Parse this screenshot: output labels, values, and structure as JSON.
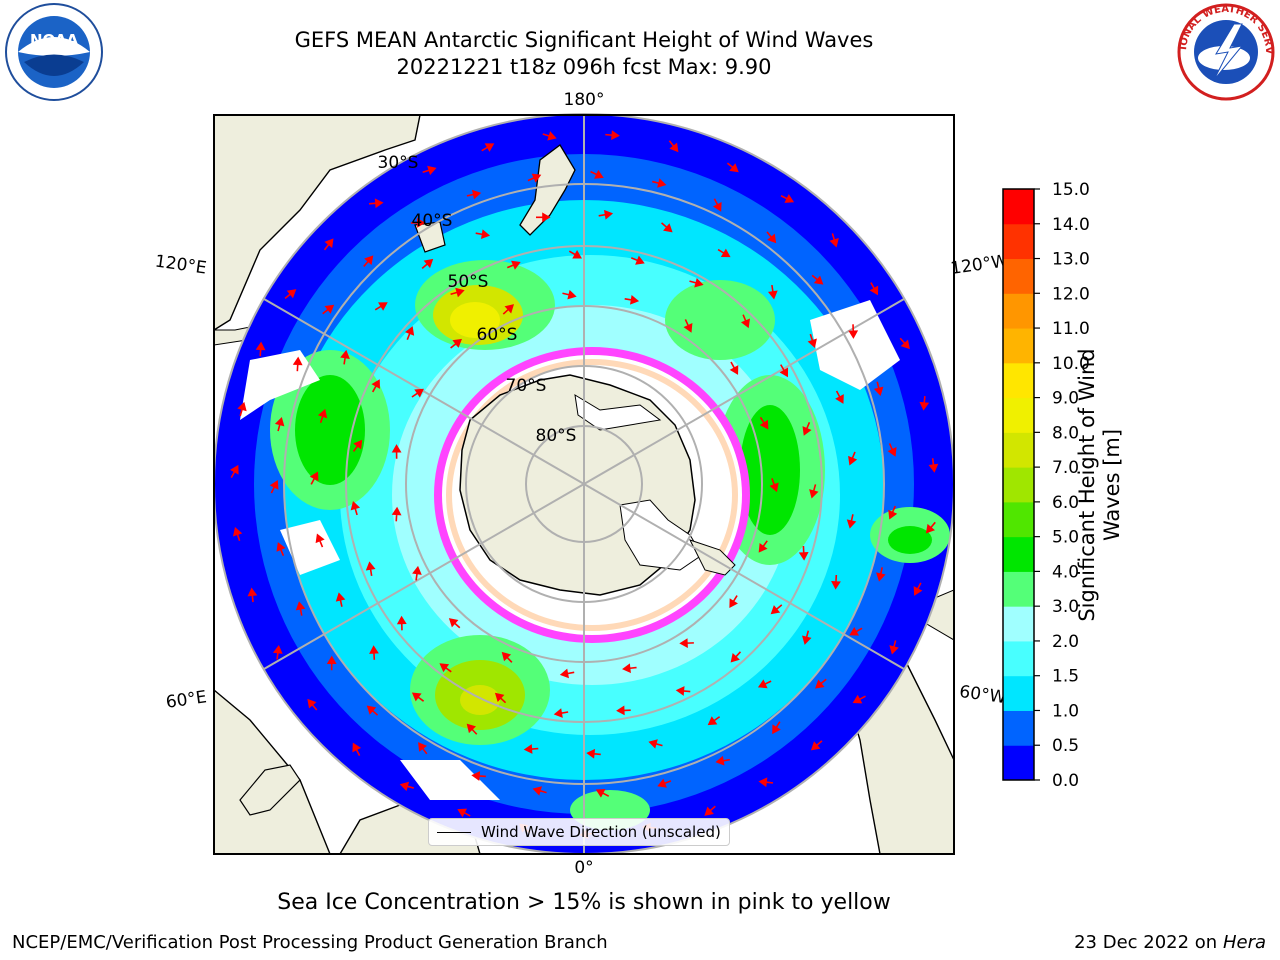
{
  "header": {
    "title_line1": "GEFS MEAN Antarctic Significant Height of Wind Waves",
    "title_line2": "20221221 t18z 096h fcst   Max: 9.90"
  },
  "logos": {
    "left": "noaa-logo",
    "right": "nws-logo",
    "left_text": "NOAA",
    "right_text": "NATIONAL WEATHER SERVICE"
  },
  "map": {
    "projection": "south-polar-stereographic",
    "longitude_labels": [
      "180°",
      "120°E",
      "120°W",
      "60°E",
      "60°W",
      "0°"
    ],
    "latitude_labels": [
      "30°S",
      "40°S",
      "50°S",
      "60°S",
      "70°S",
      "80°S"
    ],
    "colors": {
      "land": "#eeeedd",
      "ocean_base": "#0000ff",
      "sea_ice": "#ff44ff",
      "arrows": "#ff0000"
    }
  },
  "colorbar": {
    "label_line1": "Significant Height of Wind",
    "label_line2": "Waves [m]",
    "ticks": [
      "0.0",
      "0.5",
      "1.0",
      "1.5",
      "2.0",
      "3.0",
      "4.0",
      "5.0",
      "6.0",
      "7.0",
      "8.0",
      "9.0",
      "10.0",
      "11.0",
      "12.0",
      "13.0",
      "14.0",
      "15.0"
    ],
    "colors": [
      "#0000ff",
      "#0064ff",
      "#00e6ff",
      "#48ffff",
      "#a0ffff",
      "#54ff78",
      "#00e600",
      "#50e600",
      "#a0e600",
      "#d2e600",
      "#f0f000",
      "#ffe600",
      "#ffb400",
      "#ff9600",
      "#ff6400",
      "#ff3200",
      "#ff0000"
    ]
  },
  "legend": {
    "label": "Wind Wave Direction (unscaled)"
  },
  "footer": {
    "note": "Sea Ice Concentration > 15% is shown in pink to yellow",
    "credit": "NCEP/EMC/Verification Post Processing Product Generation Branch",
    "date": "23 Dec 2022 on",
    "machine": "Hera"
  }
}
